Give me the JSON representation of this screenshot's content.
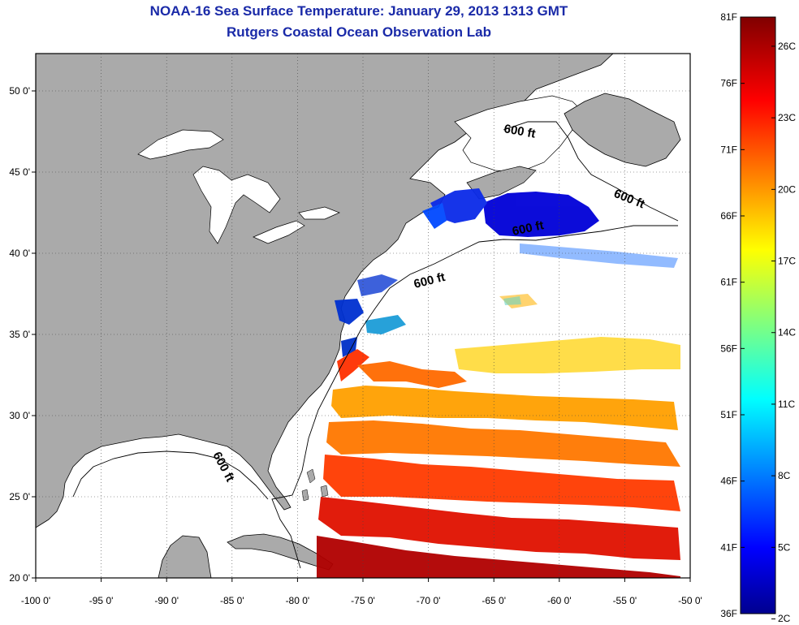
{
  "title_line1": "NOAA-16 Sea Surface Temperature:  January 29, 2013 1313 GMT",
  "title_line2": "Rutgers Coastal Ocean Observation Lab",
  "map": {
    "lon_min": -100,
    "lon_max": -50,
    "lat_min": 20,
    "lat_max": 52.3,
    "lon_ticks": [
      {
        "value": -100,
        "label": "-100 0'"
      },
      {
        "value": -95,
        "label": "-95 0'"
      },
      {
        "value": -90,
        "label": "-90 0'"
      },
      {
        "value": -85,
        "label": "-85 0'"
      },
      {
        "value": -80,
        "label": "-80 0'"
      },
      {
        "value": -75,
        "label": "-75 0'"
      },
      {
        "value": -70,
        "label": "-70 0'"
      },
      {
        "value": -65,
        "label": "-65 0'"
      },
      {
        "value": -60,
        "label": "-60 0'"
      },
      {
        "value": -55,
        "label": "-55 0'"
      },
      {
        "value": -50,
        "label": "-50 0'"
      }
    ],
    "lat_ticks": [
      {
        "value": 20,
        "label": "20 0'"
      },
      {
        "value": 25,
        "label": "25 0'"
      },
      {
        "value": 30,
        "label": "30 0'"
      },
      {
        "value": 35,
        "label": "35 0'"
      },
      {
        "value": 40,
        "label": "40 0'"
      },
      {
        "value": 45,
        "label": "45 0'"
      },
      {
        "value": 50,
        "label": "50 0'"
      }
    ],
    "isobath_label": "600 ft",
    "land_color": "#aaaaaa",
    "gridlines": "dotted"
  },
  "colorbar": {
    "f_labels": [
      "81F",
      "76F",
      "71F",
      "66F",
      "61F",
      "56F",
      "51F",
      "46F",
      "41F",
      "36F"
    ],
    "c_labels": [
      "26C",
      "23C",
      "20C",
      "17C",
      "14C",
      "11C",
      "8C",
      "5C",
      "2C"
    ],
    "colormap": "jet"
  }
}
